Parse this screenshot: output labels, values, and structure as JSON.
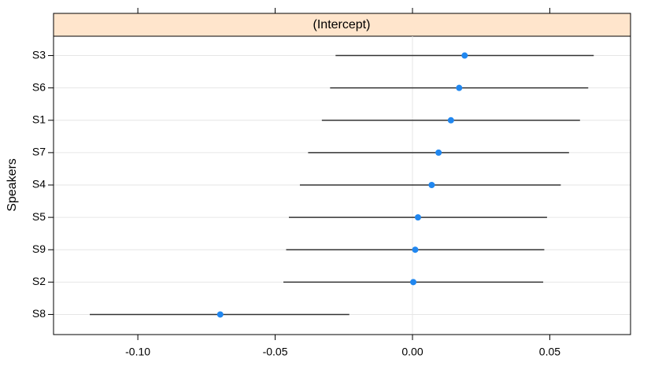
{
  "chart_data": {
    "type": "dotplot",
    "strip": "(Intercept)",
    "ylabel": "Speakers",
    "categories": [
      "S3",
      "S6",
      "S1",
      "S7",
      "S4",
      "S5",
      "S9",
      "S2",
      "S8"
    ],
    "values": [
      0.019,
      0.017,
      0.014,
      0.0095,
      0.007,
      0.002,
      0.001,
      0.0003,
      -0.07
    ],
    "lower": [
      -0.028,
      -0.03,
      -0.033,
      -0.038,
      -0.041,
      -0.045,
      -0.046,
      -0.047,
      -0.1175
    ],
    "upper": [
      0.066,
      0.064,
      0.061,
      0.057,
      0.054,
      0.049,
      0.048,
      0.0476,
      -0.023
    ],
    "color": "#2087f0",
    "bar_color": "#333333",
    "xlim": [
      -0.1307,
      0.0794
    ],
    "xticks": [
      {
        "value": -0.1,
        "label": "-0.10"
      },
      {
        "value": -0.05,
        "label": "-0.05"
      },
      {
        "value": 0,
        "label": "0.00"
      },
      {
        "value": 0.05,
        "label": "0.05"
      }
    ],
    "ref_x": 0,
    "grid": true
  }
}
